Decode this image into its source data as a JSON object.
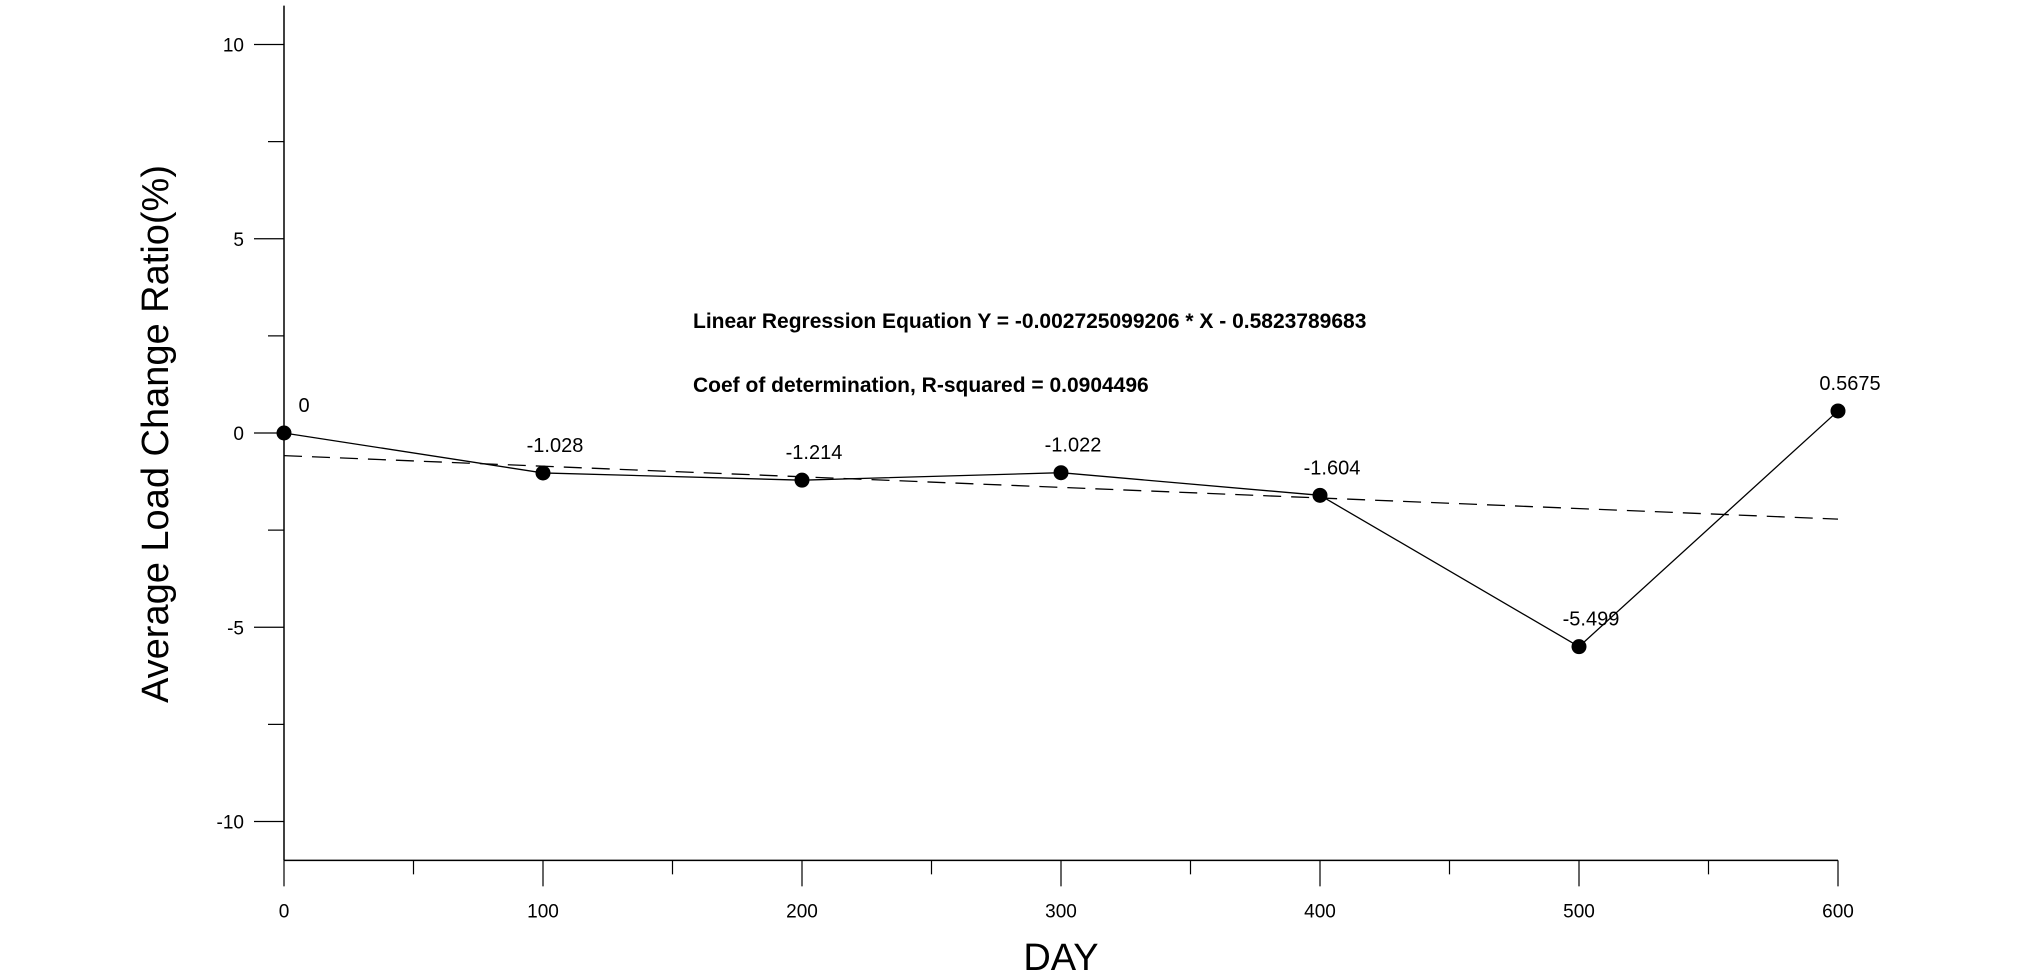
{
  "chart_data": {
    "type": "line",
    "title": "",
    "xlabel": "DAY",
    "ylabel": "Average Load Change Ratio(%)",
    "xlim": [
      0,
      600
    ],
    "ylim": [
      -11,
      11
    ],
    "x_ticks": [
      0,
      100,
      200,
      300,
      400,
      500,
      600
    ],
    "x_tick_labels": [
      "0",
      "100",
      "200",
      "300",
      "400",
      "500",
      "600"
    ],
    "y_ticks": [
      -10,
      -5,
      0,
      5,
      10
    ],
    "y_tick_labels": [
      "-10",
      "-5",
      "0",
      "5",
      "10"
    ],
    "grid": false,
    "series": [
      {
        "x": [
          0,
          100,
          200,
          300,
          400,
          500,
          600
        ],
        "y": [
          0,
          -1.028,
          -1.214,
          -1.022,
          -1.604,
          -5.499,
          0.5675
        ],
        "data_labels": [
          "0",
          "-1.028",
          "-1.214",
          "-1.022",
          "-1.604",
          "-5.499",
          "0.5675"
        ],
        "style": "solid line with filled circle markers",
        "color": "#000000"
      }
    ],
    "regression": {
      "slope": -0.002725099206,
      "intercept": -0.5823789683,
      "style": "dashed",
      "color": "#000000"
    },
    "annotations": [
      "Linear Regression Equation Y = -0.002725099206 * X - 0.5823789683",
      "Coef of determination, R-squared = 0.0904496"
    ]
  }
}
